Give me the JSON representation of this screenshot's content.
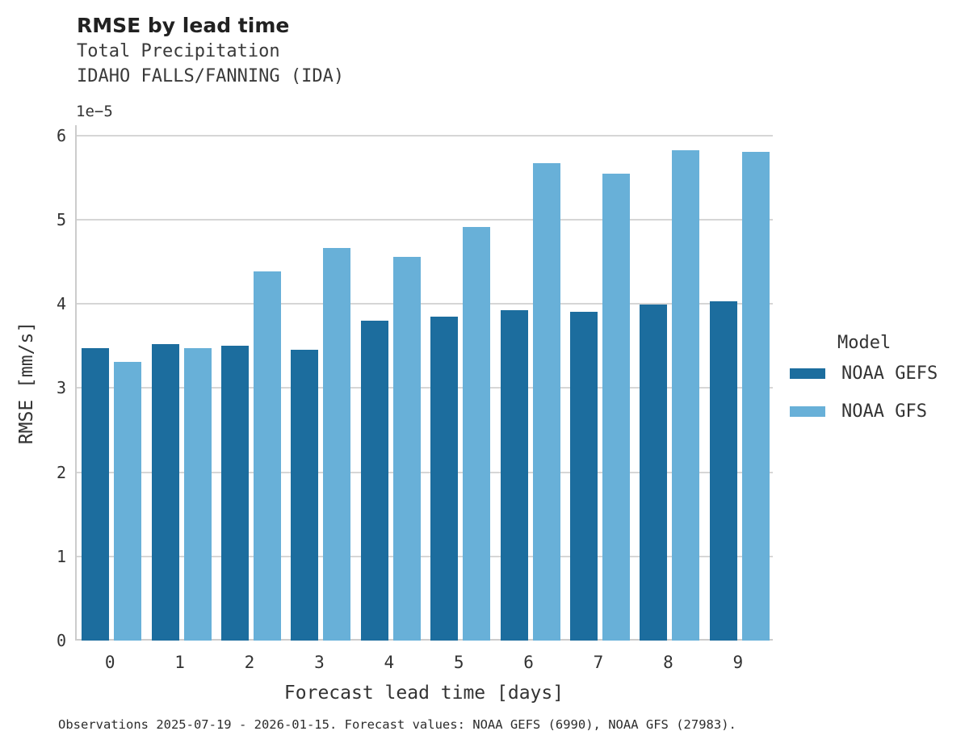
{
  "header": {
    "title": "RMSE by lead time",
    "subtitle1": "Total Precipitation",
    "subtitle2": "IDAHO FALLS/FANNING (IDA)"
  },
  "axes": {
    "offset_text": "1e−5",
    "xlabel": "Forecast lead time [days]",
    "ylabel": "RMSE [mm/s]"
  },
  "legend": {
    "title": "Model",
    "entries": [
      {
        "label": "NOAA GEFS",
        "color": "#1c6d9e"
      },
      {
        "label": "NOAA GFS",
        "color": "#68b0d8"
      }
    ]
  },
  "footer": {
    "text": "Observations 2025-07-19 - 2026-01-15. Forecast values: NOAA GEFS (6990), NOAA GFS (27983)."
  },
  "chart_data": {
    "type": "bar",
    "title": "RMSE by lead time",
    "subtitle": "Total Precipitation — IDAHO FALLS/FANNING (IDA)",
    "xlabel": "Forecast lead time [days]",
    "ylabel": "RMSE [mm/s]",
    "value_scale": "1e-5",
    "categories": [
      "0",
      "1",
      "2",
      "3",
      "4",
      "5",
      "6",
      "7",
      "8",
      "9"
    ],
    "series": [
      {
        "name": "NOAA GEFS",
        "color": "#1c6d9e",
        "values": [
          3.47,
          3.52,
          3.5,
          3.45,
          3.8,
          3.85,
          3.92,
          3.9,
          3.99,
          4.03
        ]
      },
      {
        "name": "NOAA GFS",
        "color": "#68b0d8",
        "values": [
          3.31,
          3.47,
          4.38,
          4.66,
          4.56,
          4.91,
          5.67,
          5.54,
          5.82,
          5.8
        ]
      }
    ],
    "ylim": [
      0,
      6.12
    ],
    "yticks": [
      0,
      1,
      2,
      3,
      4,
      5,
      6
    ],
    "grid": true,
    "grid_axis": "y",
    "legend_position": "center-right",
    "legend_title": "Model"
  }
}
